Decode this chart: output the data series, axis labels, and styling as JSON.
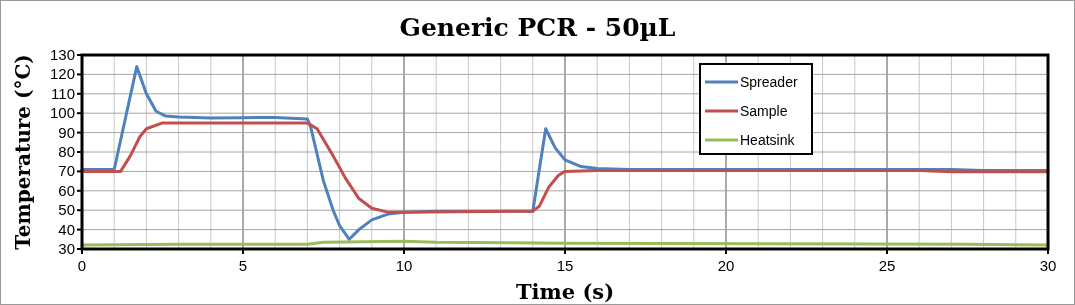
{
  "chart_data": {
    "type": "line",
    "title": "Generic PCR - 50µL",
    "xlabel": "Time (s)",
    "ylabel": "Temperature (°C)",
    "xlim": [
      0,
      30
    ],
    "ylim": [
      30,
      130
    ],
    "xticks": [
      0,
      {
        "value": 1,
        "label": null
      },
      {
        "value": 2,
        "label": null
      },
      {
        "value": 3,
        "label": null
      },
      {
        "value": 4,
        "label": null
      },
      5,
      {
        "value": 6,
        "label": null
      },
      {
        "value": 7,
        "label": null
      },
      {
        "value": 8,
        "label": null
      },
      {
        "value": 9,
        "label": null
      },
      10,
      {
        "value": 11,
        "label": null
      },
      {
        "value": 12,
        "label": null
      },
      {
        "value": 13,
        "label": null
      },
      {
        "value": 14,
        "label": null
      },
      15,
      {
        "value": 16,
        "label": null
      },
      {
        "value": 17,
        "label": null
      },
      {
        "value": 18,
        "label": null
      },
      {
        "value": 19,
        "label": null
      },
      20,
      {
        "value": 21,
        "label": null
      },
      {
        "value": 22,
        "label": null
      },
      {
        "value": 23,
        "label": null
      },
      {
        "value": 24,
        "label": null
      },
      25,
      {
        "value": 26,
        "label": null
      },
      {
        "value": 27,
        "label": null
      },
      {
        "value": 28,
        "label": null
      },
      {
        "value": 29,
        "label": null
      },
      30
    ],
    "yticks": [
      30,
      40,
      50,
      60,
      70,
      80,
      90,
      100,
      110,
      120,
      130
    ],
    "grid": true,
    "legend": "top right",
    "marker": "none",
    "line_style": "solid",
    "series": [
      {
        "name": "Spreader",
        "color": "#4f81bd",
        "x": [
          0,
          1,
          1.7,
          2,
          2.3,
          2.6,
          3,
          4,
          5,
          6,
          7,
          7.1,
          7.5,
          7.8,
          8,
          8.3,
          8.6,
          9,
          9.5,
          10,
          11,
          14,
          14.4,
          14.7,
          15,
          15.5,
          16,
          17,
          20,
          25,
          27,
          28,
          30
        ],
        "values": [
          71,
          71,
          124,
          110,
          101,
          98.5,
          98,
          97.5,
          97.7,
          97.8,
          97,
          93,
          65,
          50,
          42,
          35,
          40,
          45,
          48,
          49,
          49.5,
          49.5,
          92,
          82,
          76,
          72.5,
          71.5,
          71,
          71,
          71,
          71,
          70.5,
          70.5
        ]
      },
      {
        "name": "Sample",
        "color": "#c0504d",
        "x": [
          0,
          1.2,
          1.5,
          1.8,
          2,
          2.5,
          3,
          5,
          7,
          7.3,
          7.8,
          8.2,
          8.6,
          9,
          9.5,
          10,
          14,
          14.2,
          14.5,
          14.8,
          15,
          16,
          20,
          26,
          27,
          30
        ],
        "values": [
          70,
          70,
          78,
          88,
          92,
          95,
          95,
          95,
          95,
          92,
          78,
          66,
          56,
          51,
          49,
          49,
          49.5,
          52,
          62,
          68,
          70,
          70.5,
          70.5,
          70.5,
          69.8,
          69.8
        ]
      },
      {
        "name": "Heatsink",
        "color": "#9bbb59",
        "x": [
          0,
          3,
          7,
          7.5,
          10,
          11,
          15,
          27.5,
          30
        ],
        "values": [
          32,
          32.5,
          32.5,
          33.5,
          34,
          33.5,
          33,
          32.5,
          32
        ]
      }
    ]
  }
}
